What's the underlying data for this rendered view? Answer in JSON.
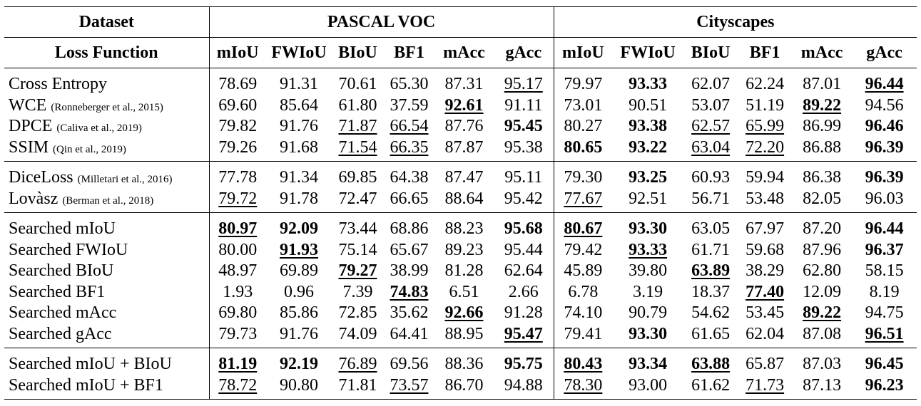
{
  "header": {
    "dataset_label": "Dataset",
    "loss_label": "Loss Function",
    "groups": [
      "PASCAL VOC",
      "Cityscapes"
    ],
    "metrics": [
      "mIoU",
      "FWIoU",
      "BIoU",
      "BF1",
      "mAcc",
      "gAcc"
    ]
  },
  "groups": [
    {
      "rows": [
        {
          "name": "Cross Entropy",
          "cite": "",
          "cells": [
            {
              "v": "78.69",
              "s": ""
            },
            {
              "v": "91.31",
              "s": ""
            },
            {
              "v": "70.61",
              "s": ""
            },
            {
              "v": "65.30",
              "s": ""
            },
            {
              "v": "87.31",
              "s": ""
            },
            {
              "v": "95.17",
              "s": "u"
            },
            {
              "v": "79.97",
              "s": ""
            },
            {
              "v": "93.33",
              "s": "b"
            },
            {
              "v": "62.07",
              "s": ""
            },
            {
              "v": "62.24",
              "s": ""
            },
            {
              "v": "87.01",
              "s": ""
            },
            {
              "v": "96.44",
              "s": "bu"
            }
          ]
        },
        {
          "name": "WCE",
          "cite": "(Ronneberger et al., 2015)",
          "cells": [
            {
              "v": "69.60",
              "s": ""
            },
            {
              "v": "85.64",
              "s": ""
            },
            {
              "v": "61.80",
              "s": ""
            },
            {
              "v": "37.59",
              "s": ""
            },
            {
              "v": "92.61",
              "s": "bu"
            },
            {
              "v": "91.11",
              "s": ""
            },
            {
              "v": "73.01",
              "s": ""
            },
            {
              "v": "90.51",
              "s": ""
            },
            {
              "v": "53.07",
              "s": ""
            },
            {
              "v": "51.19",
              "s": ""
            },
            {
              "v": "89.22",
              "s": "bu"
            },
            {
              "v": "94.56",
              "s": ""
            }
          ]
        },
        {
          "name": "DPCE",
          "cite": "(Caliva et al., 2019)",
          "cells": [
            {
              "v": "79.82",
              "s": ""
            },
            {
              "v": "91.76",
              "s": ""
            },
            {
              "v": "71.87",
              "s": "u"
            },
            {
              "v": "66.54",
              "s": "u"
            },
            {
              "v": "87.76",
              "s": ""
            },
            {
              "v": "95.45",
              "s": "b"
            },
            {
              "v": "80.27",
              "s": ""
            },
            {
              "v": "93.38",
              "s": "b"
            },
            {
              "v": "62.57",
              "s": "u"
            },
            {
              "v": "65.99",
              "s": "u"
            },
            {
              "v": "86.99",
              "s": ""
            },
            {
              "v": "96.46",
              "s": "b"
            }
          ]
        },
        {
          "name": "SSIM",
          "cite": "(Qin et al., 2019)",
          "cells": [
            {
              "v": "79.26",
              "s": ""
            },
            {
              "v": "91.68",
              "s": ""
            },
            {
              "v": "71.54",
              "s": "u"
            },
            {
              "v": "66.35",
              "s": "u"
            },
            {
              "v": "87.87",
              "s": ""
            },
            {
              "v": "95.38",
              "s": ""
            },
            {
              "v": "80.65",
              "s": "b"
            },
            {
              "v": "93.22",
              "s": "b"
            },
            {
              "v": "63.04",
              "s": "u"
            },
            {
              "v": "72.20",
              "s": "u"
            },
            {
              "v": "86.88",
              "s": ""
            },
            {
              "v": "96.39",
              "s": "b"
            }
          ]
        }
      ]
    },
    {
      "rows": [
        {
          "name": "DiceLoss",
          "cite": "(Milletari et al., 2016)",
          "cells": [
            {
              "v": "77.78",
              "s": ""
            },
            {
              "v": "91.34",
              "s": ""
            },
            {
              "v": "69.85",
              "s": ""
            },
            {
              "v": "64.38",
              "s": ""
            },
            {
              "v": "87.47",
              "s": ""
            },
            {
              "v": "95.11",
              "s": ""
            },
            {
              "v": "79.30",
              "s": ""
            },
            {
              "v": "93.25",
              "s": "b"
            },
            {
              "v": "60.93",
              "s": ""
            },
            {
              "v": "59.94",
              "s": ""
            },
            {
              "v": "86.38",
              "s": ""
            },
            {
              "v": "96.39",
              "s": "b"
            }
          ]
        },
        {
          "name": "Lovàsz",
          "cite": "(Berman et al., 2018)",
          "cells": [
            {
              "v": "79.72",
              "s": "u"
            },
            {
              "v": "91.78",
              "s": ""
            },
            {
              "v": "72.47",
              "s": ""
            },
            {
              "v": "66.65",
              "s": ""
            },
            {
              "v": "88.64",
              "s": ""
            },
            {
              "v": "95.42",
              "s": ""
            },
            {
              "v": "77.67",
              "s": "u"
            },
            {
              "v": "92.51",
              "s": ""
            },
            {
              "v": "56.71",
              "s": ""
            },
            {
              "v": "53.48",
              "s": ""
            },
            {
              "v": "82.05",
              "s": ""
            },
            {
              "v": "96.03",
              "s": ""
            }
          ]
        }
      ]
    },
    {
      "rows": [
        {
          "name": "Searched mIoU",
          "cite": "",
          "cells": [
            {
              "v": "80.97",
              "s": "bu"
            },
            {
              "v": "92.09",
              "s": "b"
            },
            {
              "v": "73.44",
              "s": ""
            },
            {
              "v": "68.86",
              "s": ""
            },
            {
              "v": "88.23",
              "s": ""
            },
            {
              "v": "95.68",
              "s": "b"
            },
            {
              "v": "80.67",
              "s": "bu"
            },
            {
              "v": "93.30",
              "s": "b"
            },
            {
              "v": "63.05",
              "s": ""
            },
            {
              "v": "67.97",
              "s": ""
            },
            {
              "v": "87.20",
              "s": ""
            },
            {
              "v": "96.44",
              "s": "b"
            }
          ]
        },
        {
          "name": "Searched FWIoU",
          "cite": "",
          "cells": [
            {
              "v": "80.00",
              "s": ""
            },
            {
              "v": "91.93",
              "s": "bu"
            },
            {
              "v": "75.14",
              "s": ""
            },
            {
              "v": "65.67",
              "s": ""
            },
            {
              "v": "89.23",
              "s": ""
            },
            {
              "v": "95.44",
              "s": ""
            },
            {
              "v": "79.42",
              "s": ""
            },
            {
              "v": "93.33",
              "s": "bu"
            },
            {
              "v": "61.71",
              "s": ""
            },
            {
              "v": "59.68",
              "s": ""
            },
            {
              "v": "87.96",
              "s": ""
            },
            {
              "v": "96.37",
              "s": "b"
            }
          ]
        },
        {
          "name": "Searched BIoU",
          "cite": "",
          "cells": [
            {
              "v": "48.97",
              "s": ""
            },
            {
              "v": "69.89",
              "s": ""
            },
            {
              "v": "79.27",
              "s": "bu"
            },
            {
              "v": "38.99",
              "s": ""
            },
            {
              "v": "81.28",
              "s": ""
            },
            {
              "v": "62.64",
              "s": ""
            },
            {
              "v": "45.89",
              "s": ""
            },
            {
              "v": "39.80",
              "s": ""
            },
            {
              "v": "63.89",
              "s": "bu"
            },
            {
              "v": "38.29",
              "s": ""
            },
            {
              "v": "62.80",
              "s": ""
            },
            {
              "v": "58.15",
              "s": ""
            }
          ]
        },
        {
          "name": "Searched BF1",
          "cite": "",
          "cells": [
            {
              "v": "1.93",
              "s": ""
            },
            {
              "v": "0.96",
              "s": ""
            },
            {
              "v": "7.39",
              "s": ""
            },
            {
              "v": "74.83",
              "s": "bu"
            },
            {
              "v": "6.51",
              "s": ""
            },
            {
              "v": "2.66",
              "s": ""
            },
            {
              "v": "6.78",
              "s": ""
            },
            {
              "v": "3.19",
              "s": ""
            },
            {
              "v": "18.37",
              "s": ""
            },
            {
              "v": "77.40",
              "s": "bu"
            },
            {
              "v": "12.09",
              "s": ""
            },
            {
              "v": "8.19",
              "s": ""
            }
          ]
        },
        {
          "name": "Searched mAcc",
          "cite": "",
          "cells": [
            {
              "v": "69.80",
              "s": ""
            },
            {
              "v": "85.86",
              "s": ""
            },
            {
              "v": "72.85",
              "s": ""
            },
            {
              "v": "35.62",
              "s": ""
            },
            {
              "v": "92.66",
              "s": "bu"
            },
            {
              "v": "91.28",
              "s": ""
            },
            {
              "v": "74.10",
              "s": ""
            },
            {
              "v": "90.79",
              "s": ""
            },
            {
              "v": "54.62",
              "s": ""
            },
            {
              "v": "53.45",
              "s": ""
            },
            {
              "v": "89.22",
              "s": "bu"
            },
            {
              "v": "94.75",
              "s": ""
            }
          ]
        },
        {
          "name": "Searched gAcc",
          "cite": "",
          "cells": [
            {
              "v": "79.73",
              "s": ""
            },
            {
              "v": "91.76",
              "s": ""
            },
            {
              "v": "74.09",
              "s": ""
            },
            {
              "v": "64.41",
              "s": ""
            },
            {
              "v": "88.95",
              "s": ""
            },
            {
              "v": "95.47",
              "s": "bu"
            },
            {
              "v": "79.41",
              "s": ""
            },
            {
              "v": "93.30",
              "s": "b"
            },
            {
              "v": "61.65",
              "s": ""
            },
            {
              "v": "62.04",
              "s": ""
            },
            {
              "v": "87.08",
              "s": ""
            },
            {
              "v": "96.51",
              "s": "bu"
            }
          ]
        }
      ]
    },
    {
      "rows": [
        {
          "name": "Searched mIoU + BIoU",
          "cite": "",
          "cells": [
            {
              "v": "81.19",
              "s": "bu"
            },
            {
              "v": "92.19",
              "s": "b"
            },
            {
              "v": "76.89",
              "s": "u"
            },
            {
              "v": "69.56",
              "s": ""
            },
            {
              "v": "88.36",
              "s": ""
            },
            {
              "v": "95.75",
              "s": "b"
            },
            {
              "v": "80.43",
              "s": "bu"
            },
            {
              "v": "93.34",
              "s": "b"
            },
            {
              "v": "63.88",
              "s": "bu"
            },
            {
              "v": "65.87",
              "s": ""
            },
            {
              "v": "87.03",
              "s": ""
            },
            {
              "v": "96.45",
              "s": "b"
            }
          ]
        },
        {
          "name": "Searched mIoU + BF1",
          "cite": "",
          "cells": [
            {
              "v": "78.72",
              "s": "u"
            },
            {
              "v": "90.80",
              "s": ""
            },
            {
              "v": "71.81",
              "s": ""
            },
            {
              "v": "73.57",
              "s": "u"
            },
            {
              "v": "86.70",
              "s": ""
            },
            {
              "v": "94.88",
              "s": ""
            },
            {
              "v": "78.30",
              "s": "u"
            },
            {
              "v": "93.00",
              "s": ""
            },
            {
              "v": "61.62",
              "s": ""
            },
            {
              "v": "71.73",
              "s": "u"
            },
            {
              "v": "87.13",
              "s": ""
            },
            {
              "v": "96.23",
              "s": "b"
            }
          ]
        }
      ]
    }
  ]
}
